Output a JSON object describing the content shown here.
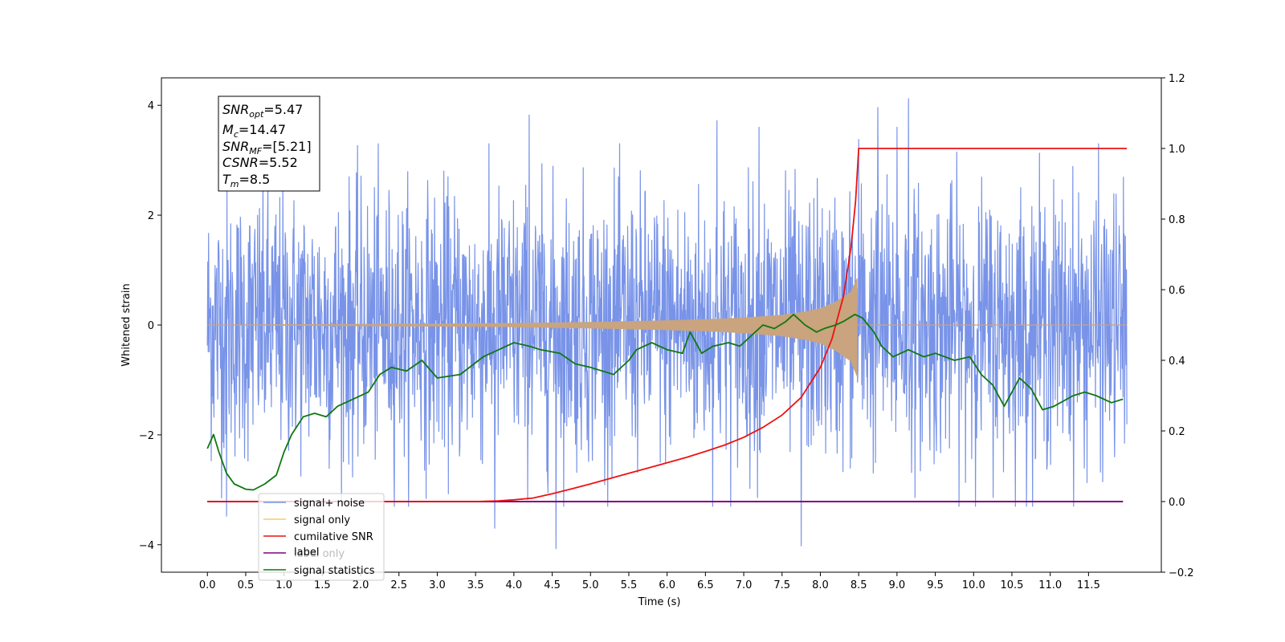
{
  "chart_data": {
    "type": "line",
    "title": "",
    "xlabel": "Time (s)",
    "ylabel": "Whitened strain",
    "xlim": [
      -0.6,
      12.45
    ],
    "ylim": [
      -4.5,
      4.5
    ],
    "y2lim": [
      -0.2,
      1.2
    ],
    "x_ticks": [
      0.0,
      0.5,
      1.0,
      1.5,
      2.0,
      2.5,
      3.0,
      3.5,
      4.0,
      4.5,
      5.0,
      5.5,
      6.0,
      6.5,
      7.0,
      7.5,
      8.0,
      8.5,
      9.0,
      9.5,
      10.0,
      10.5,
      11.0,
      11.5
    ],
    "x_tick_labels": [
      "0.0",
      "0.5",
      "1.0",
      "1.5",
      "2.0",
      "2.5",
      "3.0",
      "3.5",
      "4.0",
      "4.5",
      "5.0",
      "5.5",
      "6.0",
      "6.5",
      "7.0",
      "7.5",
      "8.0",
      "8.5",
      "9.0",
      "9.5",
      "10.0",
      "10.5",
      "11.0",
      "11.5"
    ],
    "y_ticks": [
      -4,
      -2,
      0,
      2,
      4
    ],
    "y_tick_labels": [
      "−4",
      "−2",
      "0",
      "2",
      "4"
    ],
    "y2_ticks": [
      -0.2,
      0.0,
      0.2,
      0.4,
      0.6,
      0.8,
      1.0,
      1.2
    ],
    "y2_tick_labels": [
      "−0.2",
      "0.0",
      "0.2",
      "0.4",
      "0.6",
      "0.8",
      "1.0",
      "1.2"
    ],
    "grid": false,
    "legend_position": "lower-left",
    "info_box": {
      "snr_opt": {
        "sym": "SNR",
        "sub": "opt",
        "val": "=5.47"
      },
      "mc": {
        "sym": "M",
        "sub": "c",
        "val": "=14.47"
      },
      "snr_mf": {
        "sym": "SNR",
        "sub": "MF",
        "val": "=[5.21]"
      },
      "csnr": {
        "sym": "CSNR",
        "sub": "",
        "val": "=5.52"
      },
      "tm": {
        "sym": "T",
        "sub": "m",
        "val": "=8.5"
      }
    },
    "legend": {
      "signal_noise": "signal+ noise",
      "signal_only": "signal only",
      "cumulative_snr": "cumilative SNR",
      "label_only": "label only",
      "label": "label",
      "signal_statistics": "signal statistics"
    },
    "series": [
      {
        "name": "signal+ noise",
        "axis": "left",
        "color": "#7893e8",
        "x_range": [
          0.0,
          12.0
        ],
        "envelope": {
          "typical": 1.2,
          "peak_high": 4.12,
          "peak_low": -4.07
        },
        "notable_peaks": [
          {
            "x": 0.25,
            "y": -3.48
          },
          {
            "x": 3.75,
            "y": -3.7
          },
          {
            "x": 4.2,
            "y": 3.82
          },
          {
            "x": 4.55,
            "y": -4.07
          },
          {
            "x": 6.65,
            "y": 3.72
          },
          {
            "x": 7.2,
            "y": 3.6
          },
          {
            "x": 7.75,
            "y": -4.02
          },
          {
            "x": 8.5,
            "y": 3.38
          },
          {
            "x": 8.75,
            "y": 3.96
          },
          {
            "x": 9.15,
            "y": 4.12
          },
          {
            "x": 9.0,
            "y": 3.6
          }
        ]
      },
      {
        "name": "signal only",
        "axis": "left",
        "color": "#c9a47e",
        "points": [
          [
            0.0,
            0.0
          ],
          [
            3.0,
            0.02
          ],
          [
            4.0,
            0.03
          ],
          [
            5.0,
            0.05
          ],
          [
            6.0,
            0.08
          ],
          [
            6.5,
            0.1
          ],
          [
            7.0,
            0.13
          ],
          [
            7.5,
            0.18
          ],
          [
            7.8,
            0.24
          ],
          [
            8.0,
            0.3
          ],
          [
            8.2,
            0.42
          ],
          [
            8.4,
            0.6
          ],
          [
            8.48,
            0.85
          ],
          [
            8.5,
            0.0
          ],
          [
            12.0,
            0.0
          ]
        ]
      },
      {
        "name": "cumilative SNR",
        "axis": "right",
        "color": "#ee1111",
        "points": [
          [
            0.0,
            0.0
          ],
          [
            3.5,
            0.0
          ],
          [
            3.8,
            0.002
          ],
          [
            4.0,
            0.005
          ],
          [
            4.25,
            0.01
          ],
          [
            4.5,
            0.022
          ],
          [
            4.75,
            0.036
          ],
          [
            5.0,
            0.05
          ],
          [
            5.25,
            0.065
          ],
          [
            5.5,
            0.08
          ],
          [
            5.75,
            0.095
          ],
          [
            6.0,
            0.11
          ],
          [
            6.25,
            0.125
          ],
          [
            6.5,
            0.142
          ],
          [
            6.75,
            0.16
          ],
          [
            7.0,
            0.182
          ],
          [
            7.25,
            0.21
          ],
          [
            7.5,
            0.245
          ],
          [
            7.75,
            0.295
          ],
          [
            8.0,
            0.38
          ],
          [
            8.15,
            0.46
          ],
          [
            8.3,
            0.58
          ],
          [
            8.4,
            0.72
          ],
          [
            8.46,
            0.85
          ],
          [
            8.5,
            1.0
          ],
          [
            12.0,
            1.0
          ]
        ]
      },
      {
        "name": "label",
        "axis": "right",
        "color": "#800080",
        "points": [
          [
            0.0,
            0.0
          ],
          [
            11.95,
            0.0
          ]
        ]
      },
      {
        "name": "signal statistics",
        "axis": "right",
        "color": "#117711",
        "points": [
          [
            0.0,
            0.15
          ],
          [
            0.08,
            0.19
          ],
          [
            0.15,
            0.14
          ],
          [
            0.25,
            0.08
          ],
          [
            0.35,
            0.05
          ],
          [
            0.5,
            0.035
          ],
          [
            0.6,
            0.033
          ],
          [
            0.75,
            0.05
          ],
          [
            0.9,
            0.075
          ],
          [
            1.0,
            0.14
          ],
          [
            1.1,
            0.19
          ],
          [
            1.25,
            0.24
          ],
          [
            1.4,
            0.25
          ],
          [
            1.55,
            0.24
          ],
          [
            1.7,
            0.27
          ],
          [
            1.9,
            0.29
          ],
          [
            2.1,
            0.31
          ],
          [
            2.25,
            0.36
          ],
          [
            2.4,
            0.38
          ],
          [
            2.6,
            0.37
          ],
          [
            2.8,
            0.4
          ],
          [
            3.0,
            0.35
          ],
          [
            3.3,
            0.36
          ],
          [
            3.6,
            0.41
          ],
          [
            3.8,
            0.43
          ],
          [
            4.0,
            0.45
          ],
          [
            4.2,
            0.44
          ],
          [
            4.35,
            0.43
          ],
          [
            4.6,
            0.42
          ],
          [
            4.8,
            0.39
          ],
          [
            5.0,
            0.38
          ],
          [
            5.3,
            0.36
          ],
          [
            5.5,
            0.4
          ],
          [
            5.6,
            0.43
          ],
          [
            5.8,
            0.45
          ],
          [
            6.0,
            0.43
          ],
          [
            6.2,
            0.42
          ],
          [
            6.3,
            0.48
          ],
          [
            6.45,
            0.42
          ],
          [
            6.6,
            0.44
          ],
          [
            6.8,
            0.45
          ],
          [
            6.95,
            0.44
          ],
          [
            7.1,
            0.47
          ],
          [
            7.25,
            0.5
          ],
          [
            7.4,
            0.49
          ],
          [
            7.55,
            0.51
          ],
          [
            7.65,
            0.53
          ],
          [
            7.8,
            0.5
          ],
          [
            7.95,
            0.48
          ],
          [
            8.05,
            0.49
          ],
          [
            8.2,
            0.5
          ],
          [
            8.3,
            0.51
          ],
          [
            8.45,
            0.53
          ],
          [
            8.55,
            0.52
          ],
          [
            8.7,
            0.48
          ],
          [
            8.8,
            0.44
          ],
          [
            8.95,
            0.41
          ],
          [
            9.15,
            0.43
          ],
          [
            9.35,
            0.41
          ],
          [
            9.5,
            0.42
          ],
          [
            9.75,
            0.4
          ],
          [
            9.95,
            0.41
          ],
          [
            10.1,
            0.36
          ],
          [
            10.25,
            0.33
          ],
          [
            10.4,
            0.27
          ],
          [
            10.5,
            0.31
          ],
          [
            10.6,
            0.35
          ],
          [
            10.75,
            0.32
          ],
          [
            10.9,
            0.26
          ],
          [
            11.05,
            0.27
          ],
          [
            11.3,
            0.3
          ],
          [
            11.45,
            0.31
          ],
          [
            11.6,
            0.3
          ],
          [
            11.8,
            0.28
          ],
          [
            11.95,
            0.29
          ]
        ]
      }
    ]
  }
}
